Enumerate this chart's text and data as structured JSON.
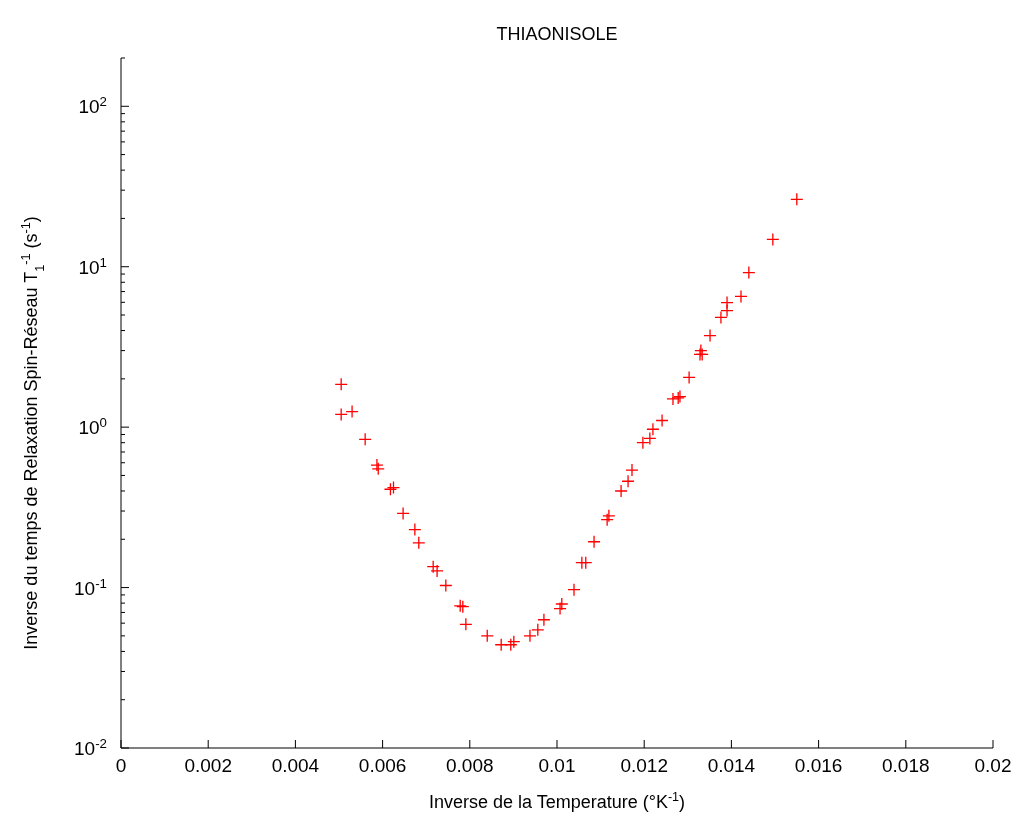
{
  "chart_data": {
    "type": "scatter",
    "title": "THIAONISOLE",
    "xlabel": "Inverse de la Temperature (°K$^{-1}$)",
    "ylabel": "Inverse du temps de Relaxation Spin-Réseau   T$_{1}$$^{-1}$ (s$^{-1}$)",
    "log": "y",
    "marker": "cross",
    "grid": false,
    "xlim": [
      0,
      0.02
    ],
    "xticks": [
      0,
      0.002,
      0.004,
      0.006,
      0.008,
      {
        "value": 0.01,
        "label": "0.01"
      },
      0.012,
      0.014,
      0.016,
      0.018,
      {
        "value": 0.02,
        "label": "0.02"
      }
    ],
    "ylim": [
      0.01,
      200
    ],
    "yticks": [
      {
        "value": 0.01,
        "label": "10$^{-2}$"
      },
      {
        "value": 0.1,
        "label": "10$^{-1}$"
      },
      {
        "value": 1,
        "label": "10$^{0}$"
      },
      {
        "value": 10,
        "label": "10$^{1}$"
      },
      {
        "value": 100,
        "label": "10$^{2}$"
      }
    ],
    "series": [
      {
        "color": "#ff0000",
        "x": [
          0.00505,
          0.00505,
          0.0053,
          0.0056,
          0.00587,
          0.0059,
          0.00618,
          0.00625,
          0.00647,
          0.00674,
          0.00683,
          0.00716,
          0.00725,
          0.00745,
          0.00778,
          0.00784,
          0.00791,
          0.0084,
          0.00872,
          0.00894,
          0.00901,
          0.00938,
          0.00956,
          0.0097,
          0.01007,
          0.01011,
          0.01039,
          0.01057,
          0.01066,
          0.01085,
          0.01115,
          0.01119,
          0.01147,
          0.01163,
          0.01172,
          0.01197,
          0.01213,
          0.0122,
          0.01241,
          0.01266,
          0.01278,
          0.01282,
          0.01303,
          0.01328,
          0.01333,
          0.0133,
          0.01351,
          0.01376,
          0.0139,
          0.0139,
          0.01422,
          0.0144,
          0.01495,
          0.0155
        ],
        "values": [
          1.85,
          1.2,
          1.25,
          0.84,
          0.58,
          0.55,
          0.41,
          0.42,
          0.29,
          0.23,
          0.19,
          0.135,
          0.127,
          0.103,
          0.077,
          0.076,
          0.059,
          0.05,
          0.044,
          0.044,
          0.046,
          0.05,
          0.0545,
          0.063,
          0.074,
          0.079,
          0.097,
          0.143,
          0.143,
          0.193,
          0.265,
          0.28,
          0.4,
          0.46,
          0.54,
          0.8,
          0.85,
          0.97,
          1.1,
          1.5,
          1.52,
          1.55,
          2.04,
          2.84,
          2.84,
          3.0,
          3.72,
          4.83,
          5.33,
          5.98,
          6.53,
          9.2,
          14.8,
          26.3
        ]
      }
    ]
  }
}
